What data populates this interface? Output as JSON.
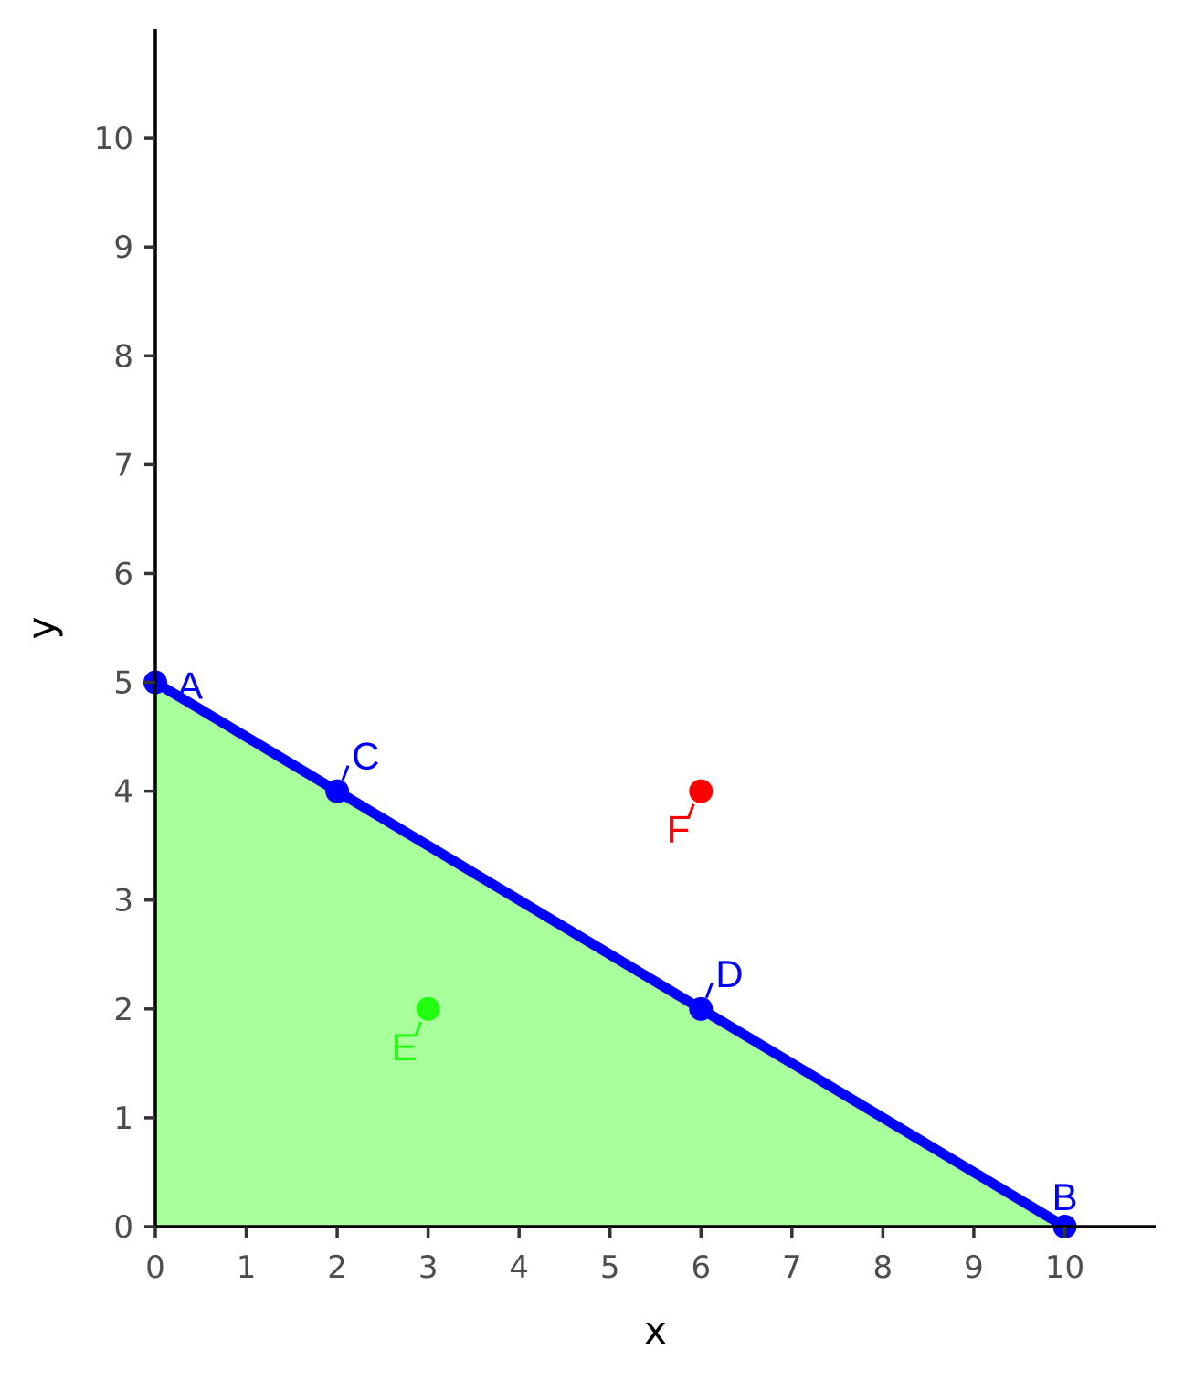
{
  "chart_data": {
    "type": "line",
    "title": "",
    "xlabel": "x",
    "ylabel": "y",
    "xlim": [
      0,
      11
    ],
    "ylim": [
      0,
      11
    ],
    "x_ticks": [
      0,
      1,
      2,
      3,
      4,
      5,
      6,
      7,
      8,
      9,
      10
    ],
    "y_ticks": [
      0,
      1,
      2,
      3,
      4,
      5,
      6,
      7,
      8,
      9,
      10
    ],
    "grid": false,
    "legend": "none",
    "feasible_region": {
      "vertices": [
        [
          0,
          0
        ],
        [
          0,
          5
        ],
        [
          10,
          0
        ]
      ],
      "color": "#a8ff9c"
    },
    "line": {
      "from": [
        0,
        5
      ],
      "to": [
        10,
        0
      ],
      "color": "#0000ff"
    },
    "points": [
      {
        "label": "A",
        "x": 0,
        "y": 5,
        "color": "#0000ff",
        "label_pos": "right"
      },
      {
        "label": "C",
        "x": 2,
        "y": 4,
        "color": "#0000ff",
        "label_pos": "upper-right"
      },
      {
        "label": "D",
        "x": 6,
        "y": 2,
        "color": "#0000ff",
        "label_pos": "upper-right"
      },
      {
        "label": "B",
        "x": 10,
        "y": 0,
        "color": "#0000ff",
        "label_pos": "above"
      },
      {
        "label": "E",
        "x": 3,
        "y": 2,
        "color": "#22ff11",
        "label_pos": "lower-left"
      },
      {
        "label": "F",
        "x": 6,
        "y": 4,
        "color": "#ff0000",
        "label_pos": "lower-left"
      }
    ]
  }
}
